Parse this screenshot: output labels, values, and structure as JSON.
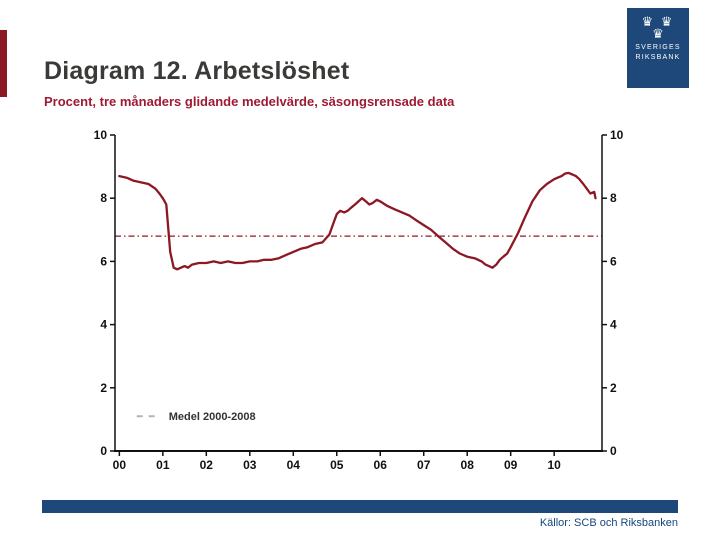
{
  "slide": {
    "title": "Diagram 12. Arbetslöshet",
    "subtitle": "Procent, tre månaders glidande medelvärde, säsongsrensade data",
    "source": "Källor: SCB och Riksbanken"
  },
  "logo": {
    "crowns_top": "♛ ♛",
    "crowns_bottom": "♛",
    "line1": "SVERIGES",
    "line2": "RIKSBANK"
  },
  "colors": {
    "accent_red": "#8c1823",
    "title_gray": "#3a3a38",
    "subtitle_red": "#9e1a33",
    "riksbank_blue": "#1d4879",
    "axis_black": "#111111"
  },
  "chart_data": {
    "type": "line",
    "title": "Diagram 12. Arbetslöshet",
    "ylabel": "Procent",
    "ylim": [
      0,
      10
    ],
    "yticks": [
      0,
      2,
      4,
      6,
      8,
      10
    ],
    "xlim": [
      1999.9,
      2011.1
    ],
    "grid": false,
    "xticks": [
      {
        "value": 2000,
        "label": "00"
      },
      {
        "value": 2001,
        "label": "01"
      },
      {
        "value": 2002,
        "label": "02"
      },
      {
        "value": 2003,
        "label": "03"
      },
      {
        "value": 2004,
        "label": "04"
      },
      {
        "value": 2005,
        "label": "05"
      },
      {
        "value": 2006,
        "label": "06"
      },
      {
        "value": 2007,
        "label": "07"
      },
      {
        "value": 2008,
        "label": "08"
      },
      {
        "value": 2009,
        "label": "09"
      },
      {
        "value": 2010,
        "label": "10"
      }
    ],
    "mean_line": {
      "value": 6.8,
      "label": "Medel 2000-2008",
      "color": "#8c1823"
    },
    "legend": {
      "label": "Medel 2000-2008",
      "sample_color": "#b3b3b3",
      "position": "lower-left"
    },
    "series": [
      {
        "name": "Arbetslöshet",
        "color": "#8c1823",
        "x": [
          2000.0,
          2000.17,
          2000.33,
          2000.5,
          2000.67,
          2000.83,
          2000.92,
          2001.0,
          2001.08,
          2001.17,
          2001.25,
          2001.33,
          2001.5,
          2001.58,
          2001.67,
          2001.83,
          2002.0,
          2002.17,
          2002.33,
          2002.5,
          2002.67,
          2002.83,
          2003.0,
          2003.17,
          2003.33,
          2003.5,
          2003.67,
          2003.83,
          2004.0,
          2004.17,
          2004.33,
          2004.5,
          2004.67,
          2004.83,
          2004.92,
          2005.0,
          2005.08,
          2005.17,
          2005.25,
          2005.33,
          2005.42,
          2005.5,
          2005.58,
          2005.67,
          2005.75,
          2005.83,
          2005.92,
          2006.0,
          2006.17,
          2006.33,
          2006.5,
          2006.67,
          2006.83,
          2007.0,
          2007.17,
          2007.33,
          2007.5,
          2007.67,
          2007.83,
          2008.0,
          2008.17,
          2008.33,
          2008.42,
          2008.5,
          2008.58,
          2008.67,
          2008.75,
          2008.83,
          2008.92,
          2009.0,
          2009.17,
          2009.33,
          2009.5,
          2009.67,
          2009.83,
          2010.0,
          2010.08,
          2010.17,
          2010.25,
          2010.33,
          2010.42,
          2010.5,
          2010.58,
          2010.67,
          2010.75,
          2010.83,
          2010.92,
          2010.95
        ],
        "y": [
          8.7,
          8.65,
          8.55,
          8.5,
          8.45,
          8.3,
          8.15,
          8.0,
          7.8,
          6.3,
          5.8,
          5.75,
          5.85,
          5.8,
          5.9,
          5.95,
          5.95,
          6.0,
          5.95,
          6.0,
          5.95,
          5.95,
          6.0,
          6.0,
          6.05,
          6.05,
          6.1,
          6.2,
          6.3,
          6.4,
          6.45,
          6.55,
          6.6,
          6.85,
          7.2,
          7.5,
          7.6,
          7.55,
          7.6,
          7.7,
          7.8,
          7.9,
          8.0,
          7.9,
          7.8,
          7.85,
          7.95,
          7.9,
          7.75,
          7.65,
          7.55,
          7.45,
          7.3,
          7.15,
          7.0,
          6.8,
          6.6,
          6.4,
          6.25,
          6.15,
          6.1,
          6.0,
          5.9,
          5.85,
          5.8,
          5.9,
          6.05,
          6.15,
          6.25,
          6.45,
          6.9,
          7.4,
          7.9,
          8.25,
          8.45,
          8.6,
          8.65,
          8.7,
          8.78,
          8.8,
          8.75,
          8.7,
          8.6,
          8.45,
          8.3,
          8.15,
          8.2,
          8.0
        ]
      }
    ]
  }
}
